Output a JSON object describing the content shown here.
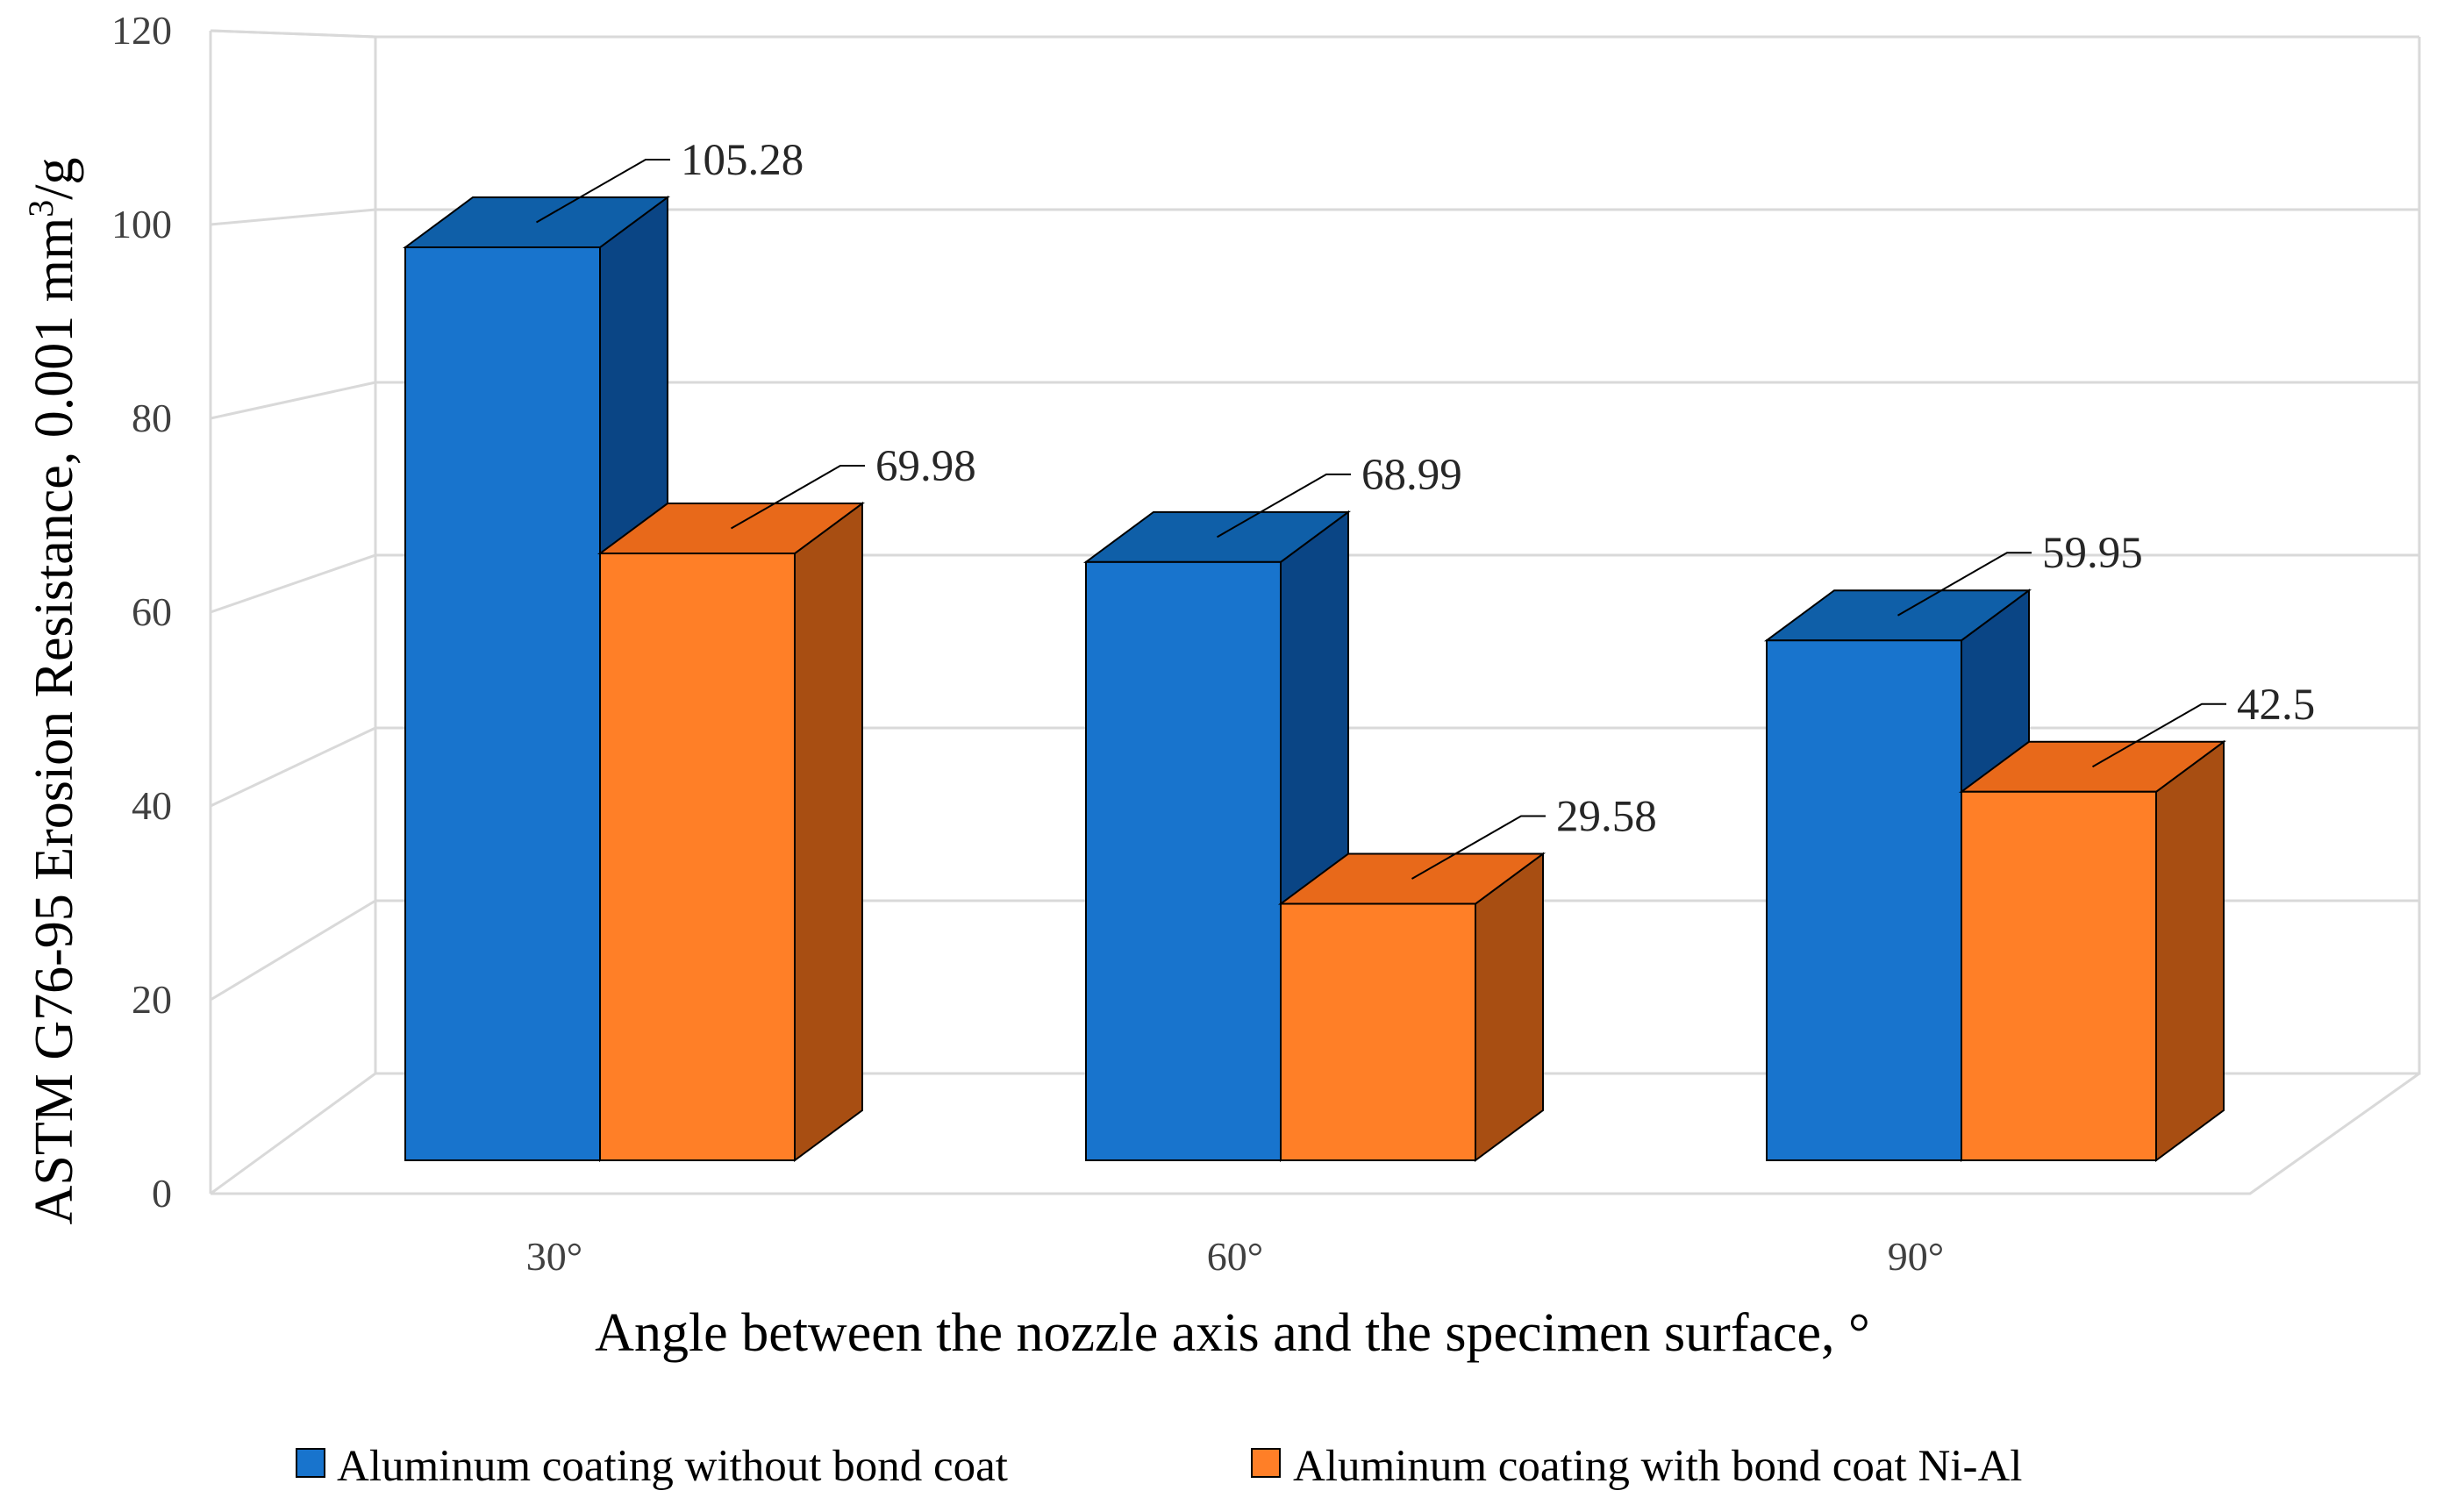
{
  "colors": {
    "series1_front": "#1874CD",
    "series1_top": "#0F5FA8",
    "series1_side": "#0A4585",
    "series2_front": "#FF7F27",
    "series2_top": "#E8691A",
    "series2_side": "#A84E12",
    "grid": "#D9D9D9",
    "bar_edge": "#000000"
  },
  "chart_data": {
    "type": "bar",
    "style": "3d-clustered-column",
    "title": "",
    "categories": [
      "30°",
      "60°",
      "90°"
    ],
    "series": [
      {
        "name": "Aluminum coating without bond coat",
        "values": [
          105.28,
          68.99,
          59.95
        ],
        "labels": [
          "105.28",
          "68.99",
          "59.95"
        ]
      },
      {
        "name": "Aluminum coating with bond coat Ni-Al",
        "values": [
          69.98,
          29.58,
          42.5
        ],
        "labels": [
          "69.98",
          "29.58",
          "42.5"
        ]
      }
    ],
    "xlabel": "Angle between the nozzle axis and the specimen surface, °",
    "ylabel_main": "ASTM G76-95 Erosion Resistance, 0.001 mm",
    "ylabel_sup": "3",
    "ylabel_tail": "/g",
    "ylim": [
      0,
      120
    ],
    "yticks": [
      0,
      20,
      40,
      60,
      80,
      100,
      120
    ],
    "grid": true,
    "legend_position": "bottom"
  }
}
